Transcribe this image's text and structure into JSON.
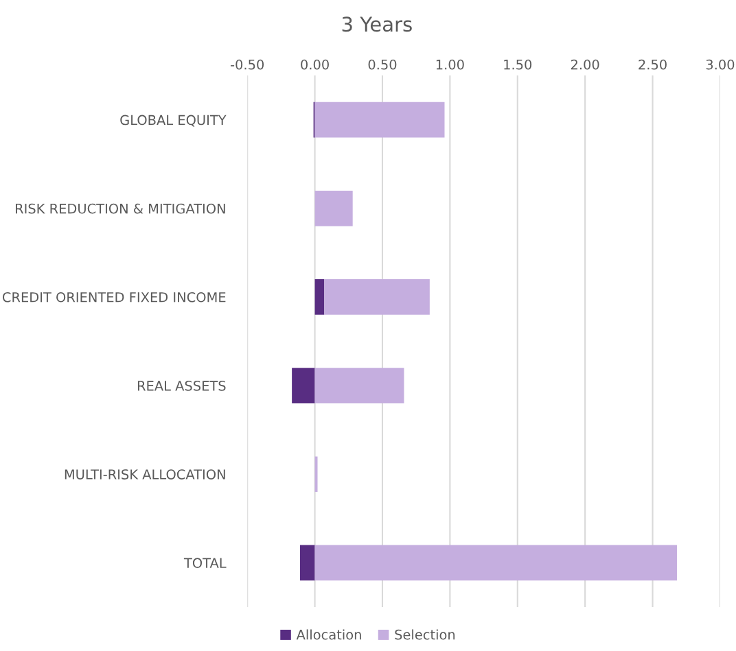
{
  "chart_data": {
    "type": "bar",
    "orientation": "horizontal",
    "stacked": true,
    "title": "3 Years",
    "categories": [
      "GLOBAL EQUITY",
      "RISK REDUCTION & MITIGATION",
      "CREDIT ORIENTED FIXED INCOME",
      "REAL ASSETS",
      "MULTI-RISK ALLOCATION",
      "TOTAL"
    ],
    "series": [
      {
        "name": "Allocation",
        "color": "#582d82",
        "values": [
          -0.01,
          0.0,
          0.07,
          -0.17,
          0.0,
          -0.11
        ]
      },
      {
        "name": "Selection",
        "color": "#c5aedf",
        "values": [
          0.96,
          0.28,
          0.78,
          0.66,
          0.02,
          2.68
        ]
      }
    ],
    "xlim": [
      -0.5,
      3.0
    ],
    "xticks": [
      {
        "value": -0.5,
        "label": "-0.50"
      },
      {
        "value": 0,
        "label": "0.00"
      },
      {
        "value": 0.5,
        "label": "0.50"
      },
      {
        "value": 1,
        "label": "1.00"
      },
      {
        "value": 1.5,
        "label": "1.50"
      },
      {
        "value": 2,
        "label": "2.00"
      },
      {
        "value": 2.5,
        "label": "2.50"
      },
      {
        "value": 3,
        "label": "3.00"
      }
    ],
    "grid": "x",
    "legend": "bottom"
  }
}
